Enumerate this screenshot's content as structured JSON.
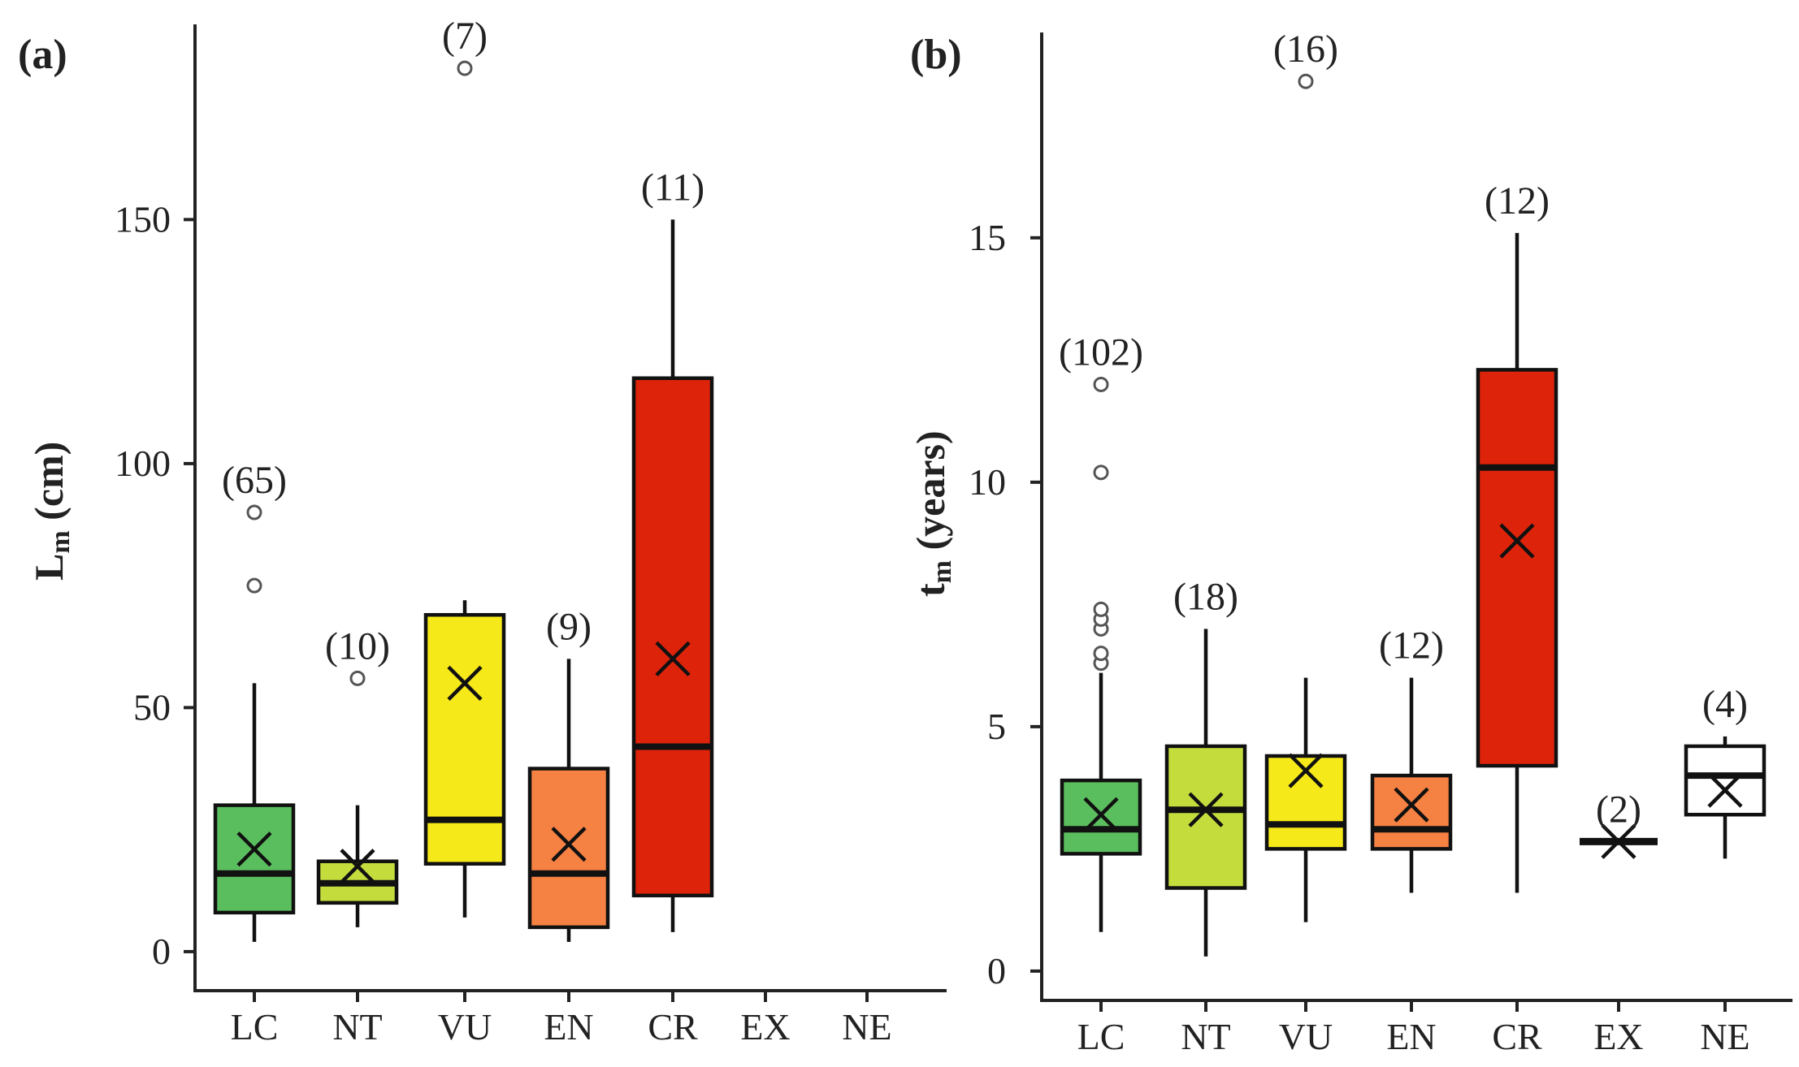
{
  "chart_data": [
    {
      "type": "box",
      "panel_label": "(a)",
      "ylabel_main": "L",
      "ylabel_sub": "m",
      "ylabel_unit": " (cm)",
      "categories": [
        "LC",
        "NT",
        "VU",
        "EN",
        "CR",
        "EX",
        "NE"
      ],
      "yticks": [
        0,
        50,
        100,
        150
      ],
      "ytick_labels": [
        "0",
        "50",
        "100",
        "150"
      ],
      "ylim": [
        -8,
        190
      ],
      "boxes": [
        {
          "category": "LC",
          "color": "#5BBE5E",
          "n_label": "(65)",
          "whisker_low": 2,
          "q1": 8,
          "median": 16,
          "q3": 30,
          "whisker_high": 55,
          "mean": 21,
          "outliers": [
            75,
            90
          ]
        },
        {
          "category": "NT",
          "color": "#C5DD3C",
          "n_label": "(10)",
          "whisker_low": 5,
          "q1": 10,
          "median": 14,
          "q3": 18.5,
          "whisker_high": 30,
          "mean": 17.5,
          "outliers": [
            56
          ]
        },
        {
          "category": "VU",
          "color": "#F6E91A",
          "n_label": "(7)",
          "whisker_low": 7,
          "q1": 18,
          "median": 27,
          "q3": 69,
          "whisker_high": 72,
          "mean": 55,
          "outliers": [
            181
          ]
        },
        {
          "category": "EN",
          "color": "#F58142",
          "n_label": "(9)",
          "whisker_low": 2,
          "q1": 5,
          "median": 16,
          "q3": 37.5,
          "whisker_high": 60,
          "mean": 22,
          "outliers": []
        },
        {
          "category": "CR",
          "color": "#DE230B",
          "n_label": "(11)",
          "whisker_low": 4,
          "q1": 11.5,
          "median": 42,
          "q3": 117.5,
          "whisker_high": 150,
          "mean": 60,
          "outliers": []
        }
      ]
    },
    {
      "type": "box",
      "panel_label": "(b)",
      "ylabel_main": "t",
      "ylabel_sub": "m",
      "ylabel_unit": " (years)",
      "categories": [
        "LC",
        "NT",
        "VU",
        "EN",
        "CR",
        "EX",
        "NE"
      ],
      "yticks": [
        0,
        5,
        10,
        15
      ],
      "ytick_labels": [
        "0",
        "5",
        "10",
        "15"
      ],
      "ylim": [
        -0.6,
        19.2
      ],
      "boxes": [
        {
          "category": "LC",
          "color": "#5BBE5E",
          "n_label": "(102)",
          "whisker_low": 0.8,
          "q1": 2.4,
          "median": 2.9,
          "q3": 3.9,
          "whisker_high": 6.1,
          "mean": 3.2,
          "outliers": [
            6.3,
            6.5,
            7.0,
            7.2,
            7.4,
            10.2,
            12.0
          ]
        },
        {
          "category": "NT",
          "color": "#C5DD3C",
          "n_label": "(18)",
          "whisker_low": 0.3,
          "q1": 1.7,
          "median": 3.3,
          "q3": 4.6,
          "whisker_high": 7.0,
          "mean": 3.3,
          "outliers": []
        },
        {
          "category": "VU",
          "color": "#F6E91A",
          "n_label": "(16)",
          "whisker_low": 1.0,
          "q1": 2.5,
          "median": 3.0,
          "q3": 4.4,
          "whisker_high": 6.0,
          "mean": 4.1,
          "outliers": [
            18.2
          ]
        },
        {
          "category": "EN",
          "color": "#F58142",
          "n_label": "(12)",
          "whisker_low": 1.6,
          "q1": 2.5,
          "median": 2.9,
          "q3": 4.0,
          "whisker_high": 6.0,
          "mean": 3.4,
          "outliers": []
        },
        {
          "category": "CR",
          "color": "#DE230B",
          "n_label": "(12)",
          "whisker_low": 1.6,
          "q1": 4.2,
          "median": 10.3,
          "q3": 12.3,
          "whisker_high": 15.1,
          "mean": 8.8,
          "outliers": []
        },
        {
          "category": "EX",
          "color": "#FFFFFF",
          "n_label": "(2)",
          "whisker_low": 2.65,
          "q1": 2.65,
          "median": 2.65,
          "q3": 2.65,
          "whisker_high": 2.65,
          "mean": 2.65,
          "outliers": []
        },
        {
          "category": "NE",
          "color": "#FFFFFF",
          "n_label": "(4)",
          "whisker_low": 2.3,
          "q1": 3.2,
          "median": 4.0,
          "q3": 4.6,
          "whisker_high": 4.8,
          "mean": 3.7,
          "outliers": []
        }
      ]
    }
  ]
}
